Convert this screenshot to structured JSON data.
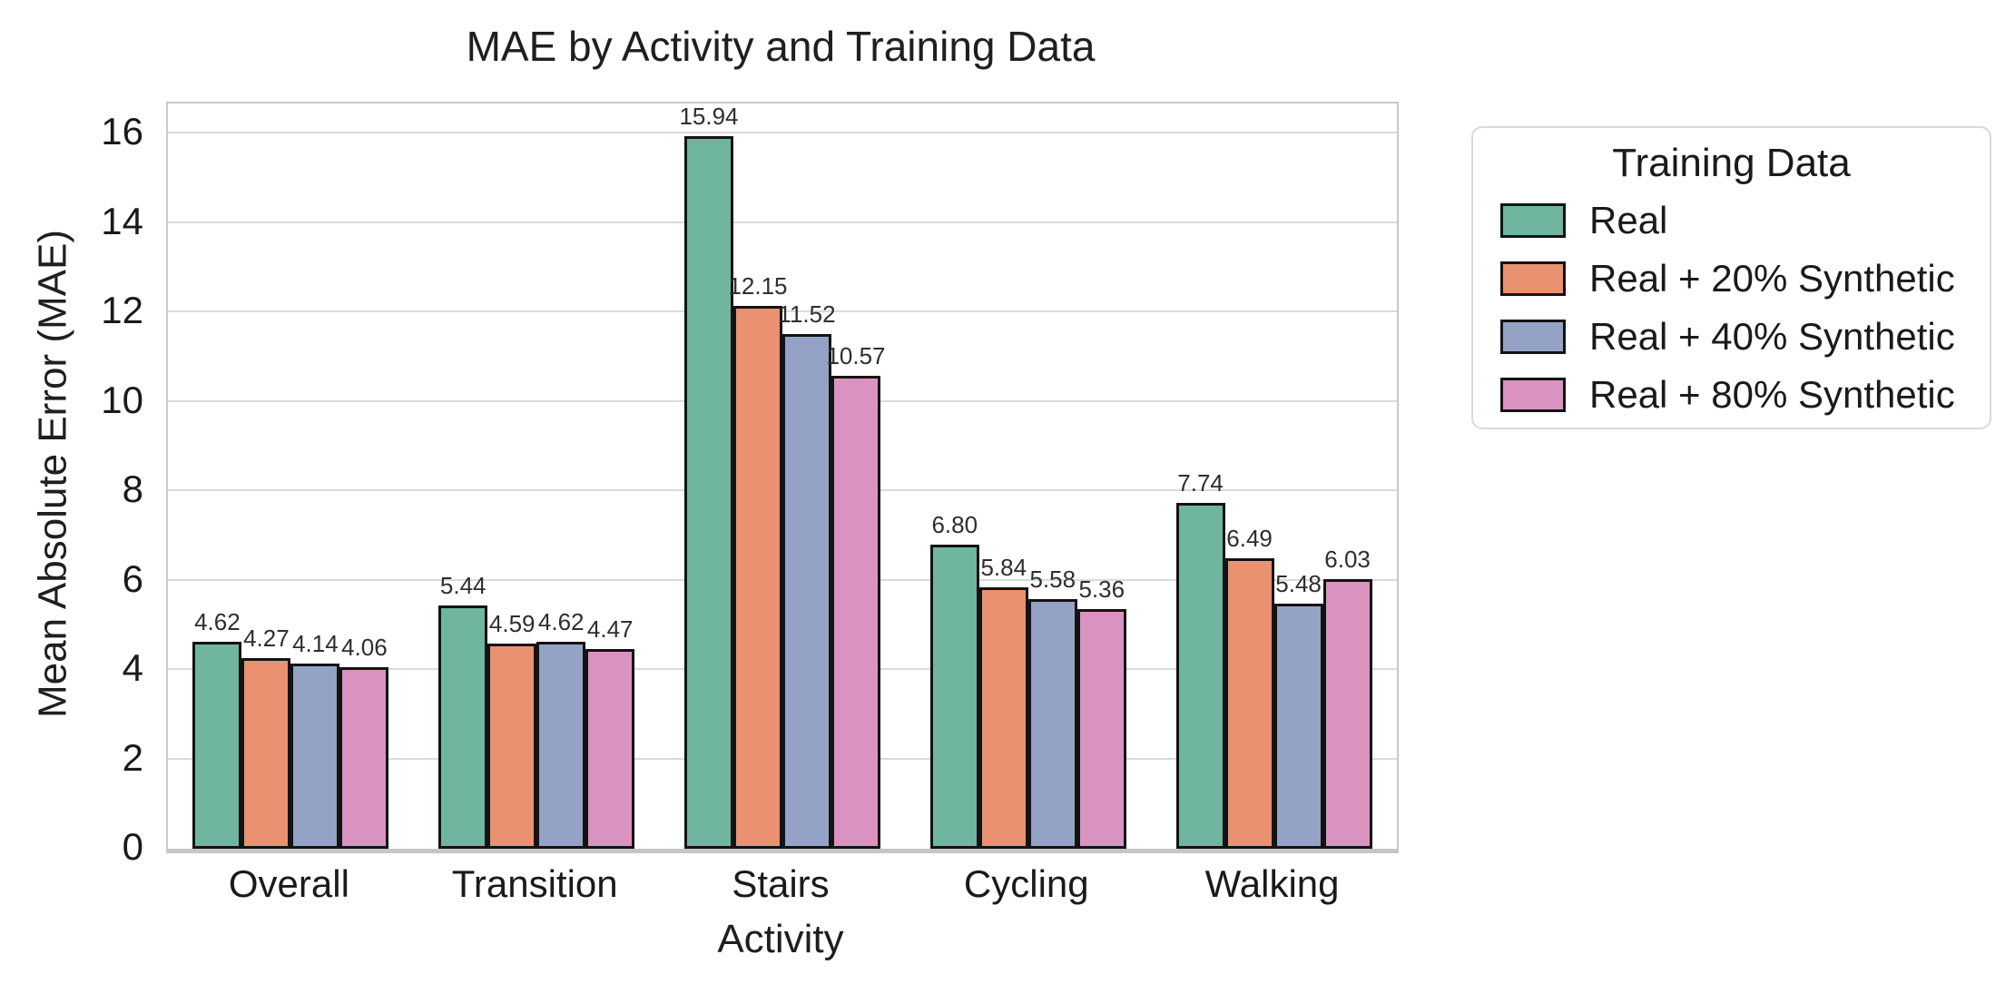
{
  "chart_data": {
    "type": "bar",
    "title": "MAE by Activity and Training Data",
    "xlabel": "Activity",
    "ylabel": "Mean Absolute Error (MAE)",
    "categories": [
      "Overall",
      "Transition",
      "Stairs",
      "Cycling",
      "Walking"
    ],
    "series": [
      {
        "name": "Real",
        "color": "#6fb5a0",
        "values": [
          4.62,
          5.44,
          15.94,
          6.8,
          7.74
        ]
      },
      {
        "name": "Real + 20% Synthetic",
        "color": "#ea9171",
        "values": [
          4.27,
          4.59,
          12.15,
          5.84,
          6.49
        ]
      },
      {
        "name": "Real + 40% Synthetic",
        "color": "#94a2c6",
        "values": [
          4.14,
          4.62,
          11.52,
          5.58,
          5.48
        ]
      },
      {
        "name": "Real + 80% Synthetic",
        "color": "#da93c1",
        "values": [
          4.06,
          4.47,
          10.57,
          5.36,
          6.03
        ]
      }
    ],
    "yticks": [
      0,
      2,
      4,
      6,
      8,
      10,
      12,
      14,
      16
    ],
    "ylim": [
      0,
      16.67
    ],
    "grid": true,
    "value_label_decimals": 2,
    "bar_edge_color": "#131313",
    "gridline_color": "#dadada",
    "legend": {
      "title": "Training Data",
      "position": "right"
    }
  }
}
